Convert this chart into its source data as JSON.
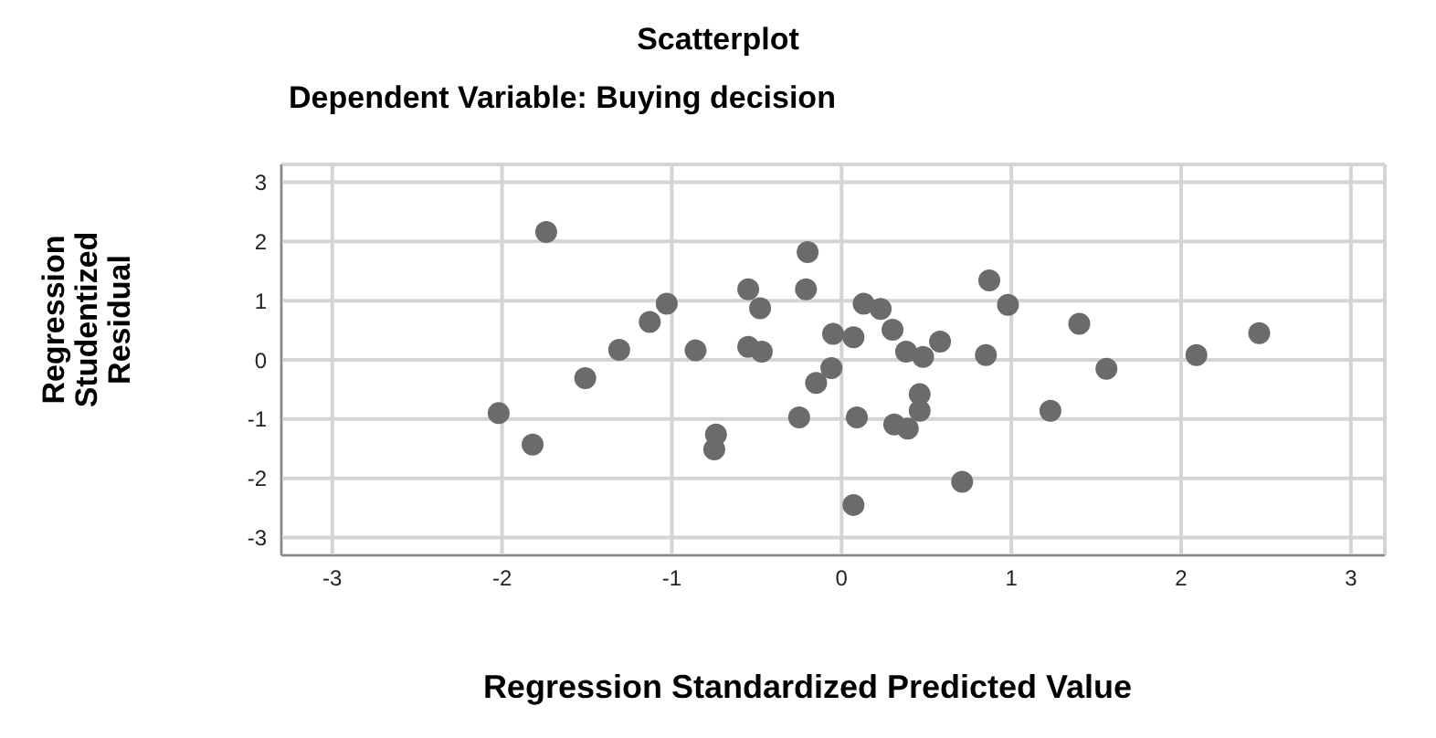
{
  "chart_data": {
    "type": "scatter",
    "title": "Scatterplot",
    "subtitle": "Dependent Variable: Buying decision",
    "xlabel": "Regression Standardized Predicted Value",
    "ylabel": "Regression Studentized Residual",
    "x": [
      -2.02,
      -1.82,
      -1.51,
      -1.31,
      -1.13,
      -0.86,
      -0.74,
      -0.75,
      -0.55,
      -0.47,
      -0.48,
      -0.25,
      -0.15,
      -0.06,
      -0.05,
      -1.74,
      -1.03,
      -0.55,
      -0.2,
      -0.21,
      0.87,
      0.98,
      1.4,
      2.46,
      0.13,
      0.23,
      0.3,
      0.07,
      0.58,
      0.38,
      0.48,
      0.85,
      1.56,
      2.09,
      0.09,
      0.31,
      0.39,
      0.46,
      0.46,
      1.23,
      0.71,
      0.07
    ],
    "series": [
      {
        "color": "#6b6b6b",
        "values": [
          -0.9,
          -1.43,
          -0.31,
          0.17,
          0.64,
          0.16,
          -1.26,
          -1.51,
          0.22,
          0.14,
          0.87,
          -0.97,
          -0.39,
          -0.14,
          0.44,
          2.16,
          0.95,
          1.19,
          1.82,
          1.19,
          1.34,
          0.93,
          0.61,
          0.45,
          0.95,
          0.86,
          0.51,
          0.38,
          0.31,
          0.14,
          0.05,
          0.08,
          -0.15,
          0.08,
          -0.97,
          -1.09,
          -1.16,
          -0.58,
          -0.86,
          -0.86,
          -2.06,
          -2.45
        ]
      }
    ],
    "xlim": [
      -3.3,
      3.2
    ],
    "ylim": [
      -3.3,
      3.3
    ],
    "xticks": [
      -3,
      -2,
      -1,
      0,
      1,
      2,
      3
    ],
    "yticks": [
      -3,
      -2,
      -1,
      0,
      1,
      2,
      3
    ],
    "grid": true,
    "marker": "circle",
    "legend": false
  }
}
